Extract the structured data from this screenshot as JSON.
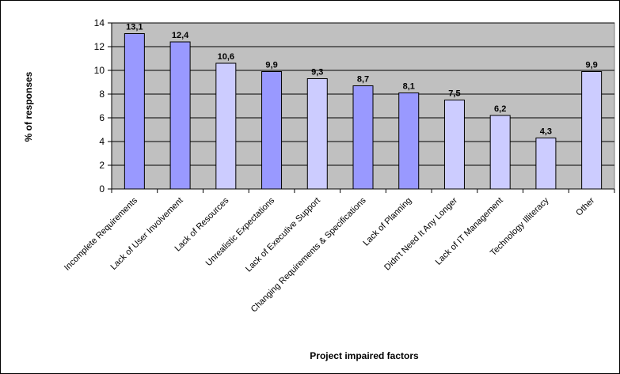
{
  "chart_data": {
    "type": "bar",
    "categories": [
      "Incomplete Requirements",
      "Lack of User Involvement",
      "Lack of Resources",
      "Unrealistic Expectations",
      "Lack of Executive Support",
      "Changing Requirements & Specifications",
      "Lack of Planning",
      "Didn't Need It Any Longer",
      "Lack of IT Management",
      "Technology Illiteracy",
      "Other"
    ],
    "values": [
      13.1,
      12.4,
      10.6,
      9.9,
      9.3,
      8.7,
      8.1,
      7.5,
      6.2,
      4.3,
      9.9
    ],
    "data_labels": [
      "13,1",
      "12,4",
      "10,6",
      "9,9",
      "9,3",
      "8,7",
      "8,1",
      "7,5",
      "6,2",
      "4,3",
      "9,9"
    ],
    "bar_colors": [
      "#9999ff",
      "#9999ff",
      "#ccccff",
      "#9999ff",
      "#ccccff",
      "#9999ff",
      "#9999ff",
      "#ccccff",
      "#ccccff",
      "#ccccff",
      "#ccccff"
    ],
    "xlabel": "Project impaired factors",
    "ylabel": "% of responses",
    "ylim": [
      0,
      14
    ],
    "yticks": [
      "0",
      "2",
      "4",
      "6",
      "8",
      "10",
      "12",
      "14"
    ],
    "grid": true,
    "plot_background": "#c0c0c0"
  }
}
